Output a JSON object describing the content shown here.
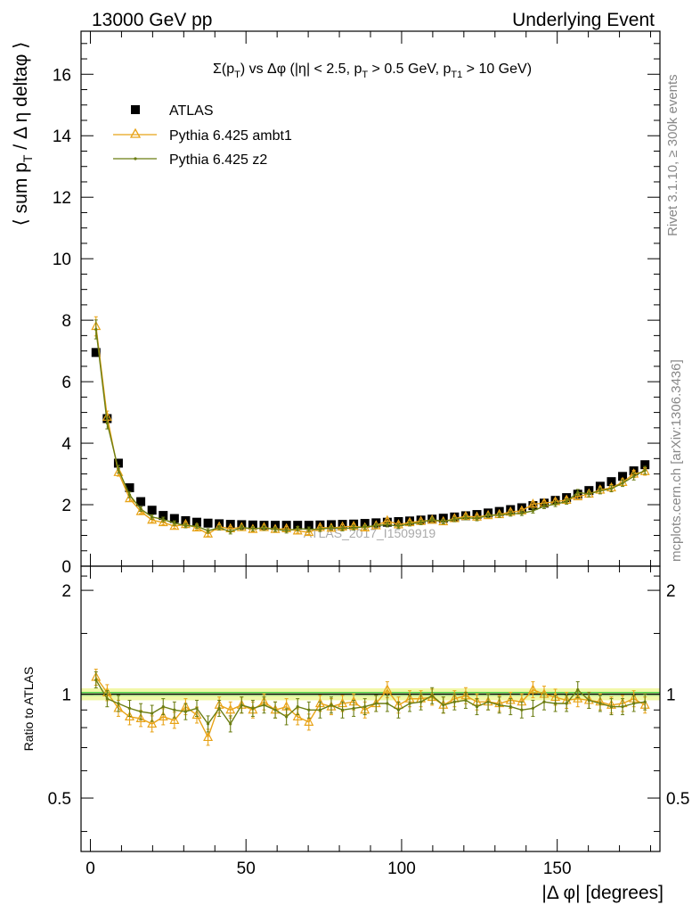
{
  "header": {
    "left": "13000 GeV pp",
    "right": "Underlying Event"
  },
  "side_labels": {
    "rivet": "Rivet 3.1.10, ≥ 300k events",
    "mcplots": "mcplots.cern.ch [arXiv:1306.3436]"
  },
  "watermark": "ATLAS_2017_I1509919",
  "colors": {
    "data": "#000000",
    "ambt1": "#e8a317",
    "z2": "#6b7d12",
    "band_outer": "#f2f7a8",
    "band_inner": "#39cc3a"
  },
  "chart_data": [
    {
      "type": "scatter",
      "panel": "main",
      "title": "Σ(pT) vs Δφ (|η| < 2.5, pT > 0.5 GeV, pT1 > 10 GeV)",
      "title_parts": {
        "a": "Σ(p",
        "a_sub": "T",
        "b": ") vs Δφ (|η| < 2.5, p",
        "b_sub": "T",
        "c": " > 0.5 GeV, p",
        "c_sub": "T1",
        "d": " > 10 GeV)"
      },
      "ylabel_parts": {
        "a": "⟨ sum p",
        "a_sub": "T",
        "b": " / Δ η deltaφ ⟩"
      },
      "xlim": [
        -3,
        183
      ],
      "ylim": [
        0,
        17.4
      ],
      "yticks": [
        0,
        2,
        4,
        6,
        8,
        10,
        12,
        14,
        16
      ],
      "ytick_labels": [
        "0",
        "2",
        "4",
        "6",
        "8",
        "10",
        "12",
        "14",
        "16"
      ],
      "legend_placement": "top-left",
      "x": [
        1.8,
        5.4,
        9,
        12.6,
        16.2,
        19.8,
        23.4,
        27,
        30.6,
        34.2,
        37.8,
        41.4,
        45,
        48.6,
        52.2,
        55.8,
        59.4,
        63,
        66.6,
        70.2,
        73.8,
        77.4,
        81,
        84.6,
        88.2,
        91.8,
        95.4,
        99,
        102.6,
        106.2,
        109.8,
        113.4,
        117,
        120.6,
        124.2,
        127.8,
        131.4,
        135,
        138.6,
        142.2,
        145.8,
        149.4,
        153,
        156.6,
        160.2,
        163.8,
        167.4,
        171,
        174.6,
        178.2
      ],
      "series": [
        {
          "name": "ATLAS",
          "marker": "square",
          "values": [
            6.95,
            4.8,
            3.35,
            2.55,
            2.1,
            1.82,
            1.65,
            1.55,
            1.48,
            1.43,
            1.4,
            1.38,
            1.36,
            1.35,
            1.34,
            1.33,
            1.33,
            1.33,
            1.33,
            1.33,
            1.34,
            1.35,
            1.36,
            1.37,
            1.39,
            1.41,
            1.43,
            1.45,
            1.47,
            1.5,
            1.53,
            1.56,
            1.6,
            1.64,
            1.68,
            1.73,
            1.78,
            1.84,
            1.9,
            1.97,
            2.05,
            2.14,
            2.23,
            2.34,
            2.46,
            2.6,
            2.75,
            2.92,
            3.1,
            3.3
          ]
        },
        {
          "name": "Pythia 6.425 ambt1",
          "marker": "triangle",
          "values": [
            7.8,
            4.85,
            3.05,
            2.2,
            1.78,
            1.5,
            1.42,
            1.3,
            1.36,
            1.25,
            1.05,
            1.28,
            1.22,
            1.26,
            1.2,
            1.26,
            1.2,
            1.22,
            1.15,
            1.1,
            1.26,
            1.24,
            1.28,
            1.3,
            1.25,
            1.32,
            1.48,
            1.35,
            1.42,
            1.46,
            1.5,
            1.45,
            1.55,
            1.62,
            1.6,
            1.65,
            1.68,
            1.76,
            1.8,
            2.02,
            2.05,
            2.1,
            2.15,
            2.26,
            2.35,
            2.48,
            2.55,
            2.73,
            3.0,
            3.08
          ]
        },
        {
          "name": "Pythia 6.425 z2",
          "marker": "dot",
          "values": [
            7.7,
            4.65,
            3.15,
            2.32,
            1.86,
            1.6,
            1.52,
            1.4,
            1.32,
            1.3,
            1.15,
            1.25,
            1.12,
            1.26,
            1.22,
            1.24,
            1.2,
            1.15,
            1.22,
            1.2,
            1.2,
            1.25,
            1.22,
            1.25,
            1.28,
            1.32,
            1.35,
            1.3,
            1.38,
            1.42,
            1.52,
            1.45,
            1.52,
            1.58,
            1.55,
            1.65,
            1.66,
            1.7,
            1.72,
            1.8,
            1.95,
            2.02,
            2.1,
            2.4,
            2.35,
            2.45,
            2.52,
            2.7,
            2.92,
            3.12
          ]
        }
      ]
    },
    {
      "type": "scatter",
      "panel": "ratio",
      "ylabel": "Ratio to ATLAS",
      "xlabel": "|Δ φ| [degrees]",
      "xlim": [
        -3,
        183
      ],
      "ylim": [
        0.35,
        2.35
      ],
      "log_y": true,
      "yticks": [
        0.5,
        1,
        2
      ],
      "ytick_labels": [
        "0.5",
        "1",
        "2"
      ],
      "xticks": [
        0,
        50,
        100,
        150
      ],
      "xtick_labels": [
        "0",
        "50",
        "100",
        "150"
      ],
      "series": [
        {
          "name": "Pythia 6.425 ambt1",
          "values": [
            1.12,
            1.01,
            0.91,
            0.86,
            0.85,
            0.82,
            0.86,
            0.84,
            0.92,
            0.87,
            0.75,
            0.93,
            0.9,
            0.93,
            0.9,
            0.95,
            0.9,
            0.92,
            0.86,
            0.83,
            0.94,
            0.92,
            0.94,
            0.95,
            0.9,
            0.94,
            1.03,
            0.93,
            0.97,
            0.97,
            0.98,
            0.93,
            0.97,
            0.99,
            0.95,
            0.95,
            0.94,
            0.96,
            0.95,
            1.03,
            1.0,
            0.98,
            0.96,
            0.97,
            0.96,
            0.95,
            0.93,
            0.94,
            0.97,
            0.93
          ]
        },
        {
          "name": "Pythia 6.425 z2",
          "values": [
            1.1,
            0.97,
            0.94,
            0.91,
            0.89,
            0.88,
            0.92,
            0.9,
            0.89,
            0.91,
            0.82,
            0.91,
            0.82,
            0.93,
            0.91,
            0.93,
            0.9,
            0.86,
            0.92,
            0.9,
            0.9,
            0.93,
            0.9,
            0.91,
            0.92,
            0.94,
            0.94,
            0.9,
            0.94,
            0.95,
            0.99,
            0.93,
            0.95,
            0.96,
            0.92,
            0.95,
            0.93,
            0.92,
            0.9,
            0.91,
            0.95,
            0.94,
            0.94,
            1.03,
            0.96,
            0.94,
            0.92,
            0.92,
            0.94,
            0.95
          ]
        }
      ]
    }
  ]
}
